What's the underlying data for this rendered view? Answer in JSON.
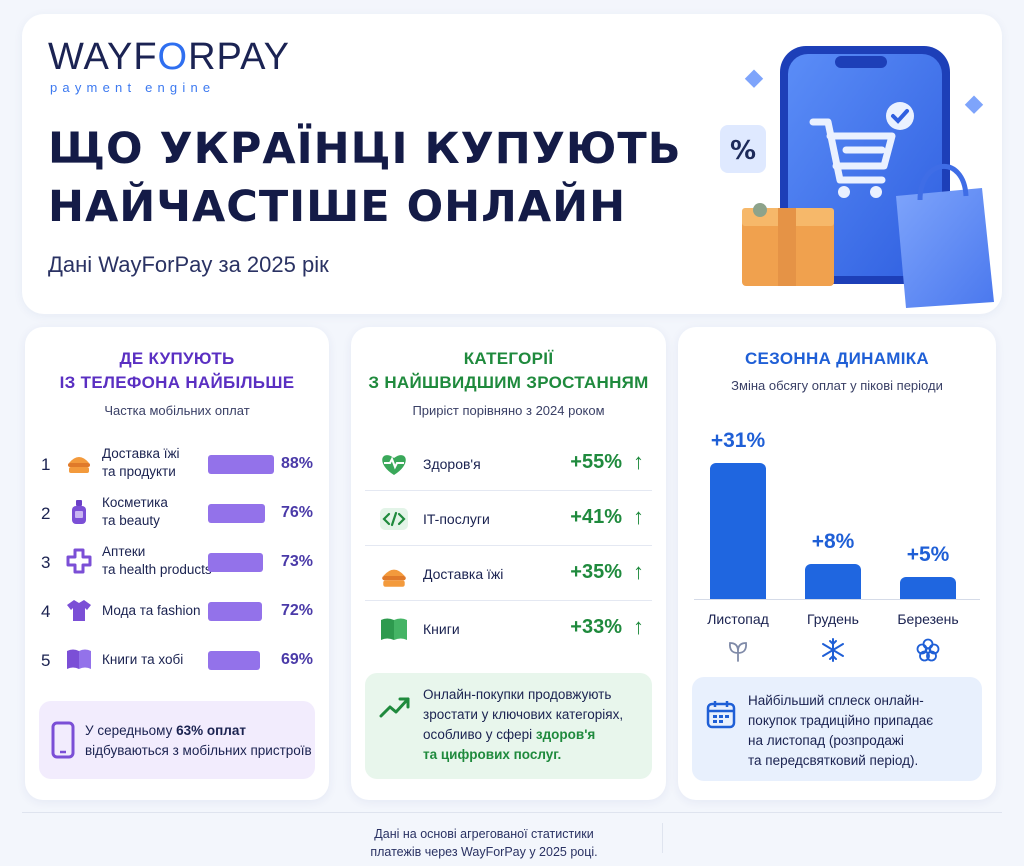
{
  "brand": {
    "logo_word_a": "WAYF",
    "logo_word_o": "O",
    "logo_word_b": "RPAY",
    "logo_tagline": "payment engine"
  },
  "header": {
    "title_line1": "ЩО УКРАЇНЦІ КУПУЮТЬ",
    "title_line2": "НАЙЧАСТІШЕ ОНЛАЙН",
    "subtitle": "Дані WayForPay за 2025 рік",
    "badge_symbol": "%"
  },
  "mobile": {
    "title_line1": "ДЕ КУПУЮТЬ",
    "title_line2": "ІЗ ТЕЛЕФОНА НАЙБІЛЬШЕ",
    "subtitle": "Частка мобільних оплат",
    "items": [
      {
        "rank": "1",
        "label": "Доставка їжі та продукти",
        "value": "88%",
        "share": 88,
        "icon": "food-bag-icon"
      },
      {
        "rank": "2",
        "label": "Косметика та beauty",
        "value": "76%",
        "share": 76,
        "icon": "cosmetics-bottle-icon"
      },
      {
        "rank": "3",
        "label": "Аптеки та health products",
        "value": "73%",
        "share": 73,
        "icon": "medical-cross-icon"
      },
      {
        "rank": "4",
        "label": "Мода та fashion",
        "value": "72%",
        "share": 72,
        "icon": "tshirt-icon"
      },
      {
        "rank": "5",
        "label": "Книги та хобі",
        "value": "69%",
        "share": 69,
        "icon": "open-book-icon"
      }
    ],
    "note_prefix": "У середньому ",
    "note_bold": "63% оплат",
    "note_suffix": "відбуваються з мобільних пристроїв",
    "bar_color": "#9372ea"
  },
  "growth": {
    "title_line1": "КАТЕГОРІЇ",
    "title_line2": "З НАЙШВИДШИМ ЗРОСТАННЯМ",
    "subtitle": "Приріст порівняно з 2024 роком",
    "items": [
      {
        "label": "Здоров'я",
        "value": "+55%",
        "arrow": "↑",
        "icon": "heart-pulse-icon"
      },
      {
        "label": "IT-послуги",
        "value": "+41%",
        "arrow": "↑",
        "icon": "code-icon"
      },
      {
        "label": "Доставка їжі",
        "value": "+35%",
        "arrow": "↑",
        "icon": "food-bag-icon"
      },
      {
        "label": "Книги",
        "value": "+33%",
        "arrow": "↑",
        "icon": "book-icon"
      }
    ],
    "note_line1": "Онлайн-покупки продовжують",
    "note_line2": "зростати у ключових категоріях,",
    "note_line3_prefix": "особливо у сфері ",
    "note_line3_bold": "здоров'я",
    "note_line4_bold": "та цифрових послуг.",
    "accent": "#1f8a3d"
  },
  "season": {
    "title": "СЕЗОННА ДИНАМІКА",
    "subtitle": "Зміна обсягу оплат у пікові періоди",
    "months": [
      {
        "label": "Листопад",
        "value": "+31%",
        "change": 31,
        "icon": "leaf-icon"
      },
      {
        "label": "Грудень",
        "value": "+8%",
        "change": 8,
        "icon": "snowflake-icon"
      },
      {
        "label": "Березень",
        "value": "+5%",
        "change": 5,
        "icon": "flower-icon"
      }
    ],
    "note_line1": "Найбільший сплеск онлайн-",
    "note_line2": "покупок традиційно припадає",
    "note_line3": "на листопад (розпродажі",
    "note_line4": "та передсвятковий період).",
    "accent": "#1f66e0"
  },
  "footer": {
    "line1": "Дані на основі агрегованої статистики",
    "line2": "платежів через WayForPay у 2025 році."
  }
}
